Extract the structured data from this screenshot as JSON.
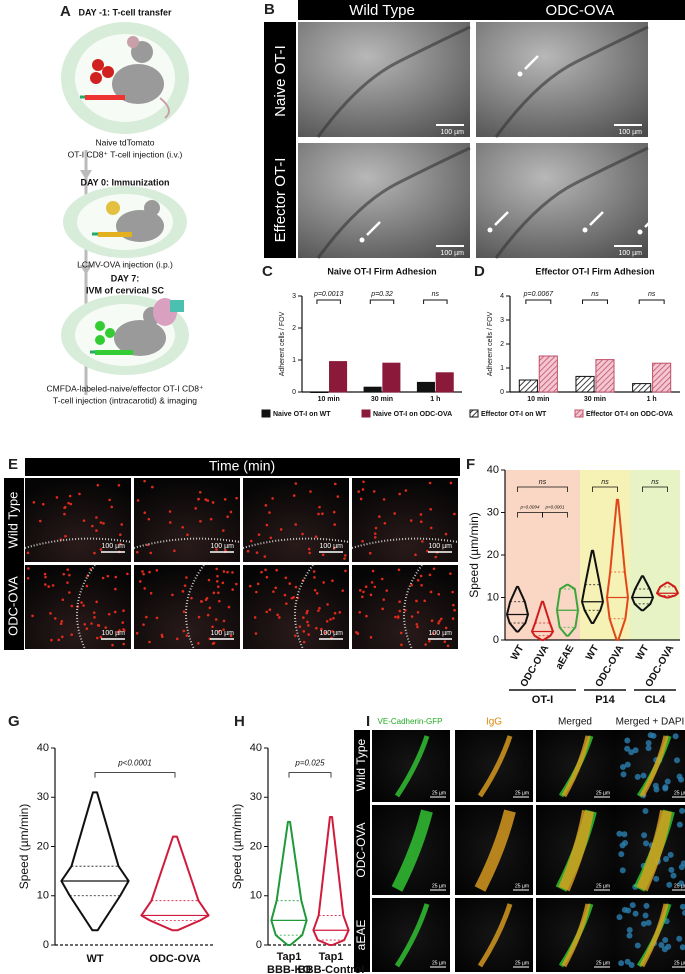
{
  "panel_a": {
    "label": "A",
    "steps": [
      {
        "title": [
          "DAY -1: T-cell transfer"
        ],
        "lines": [
          "Naive tdTomato",
          "OT-I CD8⁺ T-cell injection (i.v.)"
        ]
      },
      {
        "title": [
          "DAY 0: Immunization"
        ],
        "lines": [
          "LCMV-OVA injection (i.p.)"
        ]
      },
      {
        "title": [
          "DAY 7:",
          "IVM of cervical SC"
        ],
        "lines": [
          "CMFDA-labeled-naive/effector OT-I CD8⁺",
          "T-cell injection (intracarotid) & imaging"
        ]
      }
    ]
  },
  "panel_b": {
    "label": "B",
    "columns": [
      "Wild Type",
      "ODC-OVA"
    ],
    "rows": [
      "Naive OT-I",
      "Effector OT-I"
    ],
    "scale_bar": "100 µm"
  },
  "panel_e": {
    "label": "E",
    "header": "Time (min)",
    "rows": [
      "Wild Type",
      "ODC-OVA"
    ],
    "scale_bar": "100 µm"
  },
  "panel_i": {
    "label": "I",
    "columns": [
      "VE-Cadherin-GFP",
      "IgG",
      "Merged",
      "Merged + DAPI"
    ],
    "rows": [
      "Wild Type",
      "ODC-OVA",
      "aEAE"
    ],
    "scale_bar": "25 µm"
  },
  "chart_data": [
    {
      "type": "bar",
      "label": "C",
      "title": "Naive OT-I Firm Adhesion",
      "y_label": "Adherent cells / FOV",
      "categories": [
        "10 min",
        "30 min",
        "1 h"
      ],
      "series": [
        {
          "name": "Naive OT-I on WT",
          "color": "#111111",
          "values": [
            0,
            0.15,
            0.3
          ]
        },
        {
          "name": "Naive OT-I on ODC-OVA",
          "color": "#8b1a3a",
          "values": [
            0.95,
            0.9,
            0.6
          ]
        }
      ],
      "annotations": [
        "p=0.0013",
        "p=0.32",
        "ns"
      ],
      "ylim": [
        0,
        3
      ],
      "yticks": [
        0,
        1,
        2,
        3
      ]
    },
    {
      "type": "bar",
      "label": "D",
      "title": "Effector OT-I Firm Adhesion",
      "y_label": "Adherent cells / FOV",
      "categories": [
        "10 min",
        "30 min",
        "1 h"
      ],
      "hatch": true,
      "series": [
        {
          "name": "Effector OT-I on WT",
          "color": "#111111",
          "values": [
            0.5,
            0.65,
            0.35
          ]
        },
        {
          "name": "Effector OT-I on ODC-OVA",
          "color": "#c0506a",
          "values": [
            1.5,
            1.35,
            1.2
          ]
        }
      ],
      "annotations": [
        "p=0.0067",
        "ns",
        "ns"
      ],
      "ylim": [
        0,
        4
      ],
      "yticks": [
        0,
        1,
        2,
        3,
        4
      ]
    },
    {
      "type": "violin",
      "label": "F",
      "y_label": "Speed (µm/min)",
      "categories": [
        "WT",
        "ODC-OVA",
        "aEAE",
        "WT",
        "ODC-OVA",
        "WT",
        "ODC-OVA"
      ],
      "colors": [
        "#111111",
        "#d01c1c",
        "#3aa63a",
        "#111111",
        "#e0481c",
        "#111111",
        "#d01c1c"
      ],
      "min": [
        2,
        0,
        1,
        4,
        0,
        7,
        10
      ],
      "q1": [
        4,
        1,
        3,
        7,
        5,
        8.5,
        10.5
      ],
      "median": [
        6,
        2,
        7,
        9,
        10,
        10,
        11
      ],
      "q3": [
        9,
        4,
        12,
        13,
        16,
        12,
        12.5
      ],
      "max": [
        12.5,
        9,
        13,
        21,
        33,
        15,
        13.5
      ],
      "groups": [
        "OT-I",
        "P14",
        "CL4"
      ],
      "group_colors": [
        "#fad7c4",
        "#f6f1b4",
        "#e7f3c4"
      ],
      "annotations": [
        "ns",
        "p=0.0094",
        "p<0.0001",
        "ns",
        "ns"
      ],
      "ylim": [
        0,
        40
      ],
      "yticks": [
        0,
        10,
        20,
        30,
        40
      ]
    },
    {
      "type": "violin",
      "label": "G",
      "y_label": "Speed (µm/min)",
      "categories": [
        "WT",
        "ODC-OVA"
      ],
      "colors": [
        "#111111",
        "#d01c3c"
      ],
      "min": [
        3,
        3
      ],
      "q1": [
        10,
        5
      ],
      "median": [
        13,
        6
      ],
      "q3": [
        16,
        9
      ],
      "max": [
        31,
        22
      ],
      "annotations": [
        "p<0.0001"
      ],
      "ylim": [
        0,
        40
      ],
      "yticks": [
        0,
        10,
        20,
        30,
        40
      ]
    },
    {
      "type": "violin",
      "label": "H",
      "y_label": "Speed (µm/min)",
      "categories": [
        [
          "Tap1",
          "BBB-KO"
        ],
        [
          "Tap1",
          "BBB-Control"
        ]
      ],
      "colors": [
        "#1f9a3a",
        "#d01c3c"
      ],
      "min": [
        0,
        0
      ],
      "q1": [
        2,
        1
      ],
      "median": [
        5,
        3
      ],
      "q3": [
        9,
        6
      ],
      "max": [
        25,
        26
      ],
      "annotations": [
        "p=0.025"
      ],
      "ylim": [
        0,
        40
      ],
      "yticks": [
        0,
        10,
        20,
        30,
        40
      ]
    }
  ]
}
